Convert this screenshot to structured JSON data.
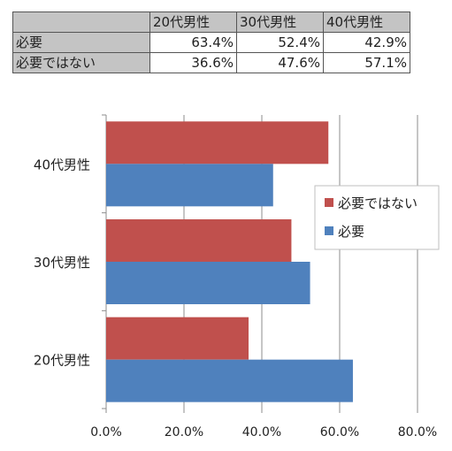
{
  "table": {
    "headers": [
      "20代男性",
      "30代男性",
      "40代男性"
    ],
    "rows": [
      {
        "label": "必要",
        "values": [
          "63.4%",
          "52.4%",
          "42.9%"
        ]
      },
      {
        "label": "必要ではない",
        "values": [
          "36.6%",
          "47.6%",
          "57.1%"
        ]
      }
    ]
  },
  "chart_data": {
    "type": "bar",
    "orientation": "horizontal",
    "categories": [
      "20代男性",
      "30代男性",
      "40代男性"
    ],
    "series": [
      {
        "name": "必要",
        "values": [
          63.4,
          52.4,
          42.9
        ],
        "color": "#4f81bd"
      },
      {
        "name": "必要ではない",
        "values": [
          36.6,
          47.6,
          57.1
        ],
        "color": "#c0504d"
      }
    ],
    "xlim": [
      0,
      80
    ],
    "xticks": [
      "0.0%",
      "20.0%",
      "40.0%",
      "60.0%",
      "80.0%"
    ],
    "grid": true,
    "legend": {
      "position": "right",
      "order": [
        "必要ではない",
        "必要"
      ]
    }
  }
}
